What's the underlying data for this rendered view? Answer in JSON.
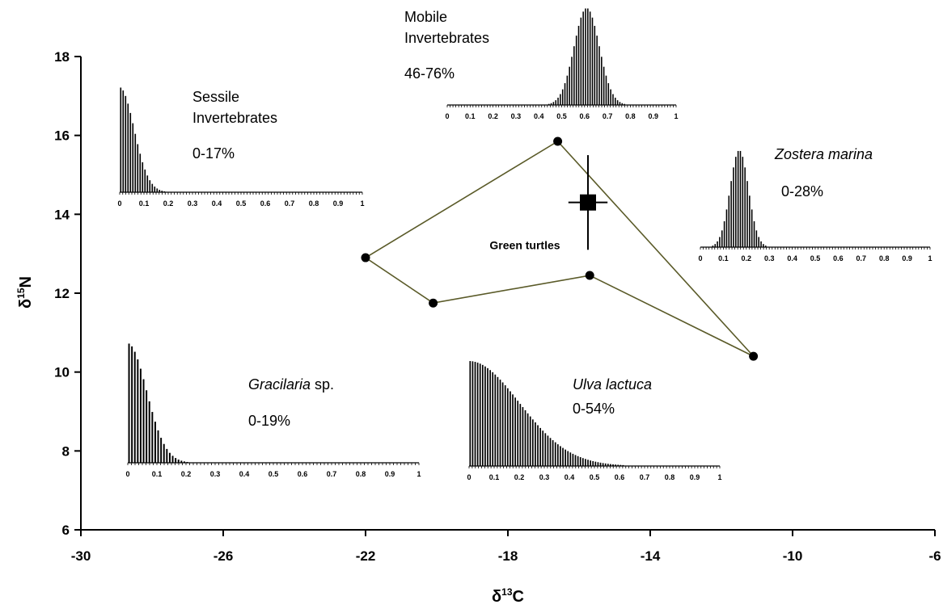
{
  "chart_data": {
    "type": "scatter",
    "xlabel_main": "δ",
    "xlabel_sup": "13",
    "xlabel_tail": "C",
    "ylabel_main": "δ",
    "ylabel_sup": "15",
    "ylabel_tail": "N",
    "xlim": [
      -30,
      -6
    ],
    "ylim": [
      6,
      18
    ],
    "xticks": [
      -30,
      -26,
      -22,
      -18,
      -14,
      -10,
      -6
    ],
    "yticks": [
      6,
      8,
      10,
      12,
      14,
      16,
      18
    ],
    "sources_polygon": [
      {
        "x": -22.0,
        "y": 12.9
      },
      {
        "x": -16.6,
        "y": 15.85
      },
      {
        "x": -11.1,
        "y": 10.4
      },
      {
        "x": -15.7,
        "y": 12.45
      },
      {
        "x": -20.1,
        "y": 11.75
      }
    ],
    "consumer": {
      "label": "Green turtles",
      "x": -15.75,
      "y": 14.3,
      "x_err": 0.55,
      "y_err": 1.2
    },
    "line_color": "#5a5a28",
    "insets": [
      {
        "id": "sessile",
        "label_lines": [
          "Sessile",
          "Invertebrates"
        ],
        "italic": false,
        "range": "0-17%",
        "ticks": [
          "0",
          "0.1",
          "0.2",
          "0.3",
          "0.4",
          "0.5",
          "0.6",
          "0.7",
          "0.8",
          "0.9",
          "1"
        ],
        "dist": {
          "shape": "halfnormal",
          "mode": 0.0,
          "sd": 0.06
        }
      },
      {
        "id": "mobile",
        "label_lines": [
          "Mobile",
          "Invertebrates"
        ],
        "italic": false,
        "range": "46-76%",
        "ticks": [
          "0",
          "0.1",
          "0.2",
          "0.3",
          "0.4",
          "0.5",
          "0.6",
          "0.7",
          "0.8",
          "0.9",
          "1"
        ],
        "dist": {
          "shape": "normal",
          "mode": 0.61,
          "sd": 0.055
        }
      },
      {
        "id": "zostera",
        "label_lines": [
          "Zostera marina"
        ],
        "italic": true,
        "range": "0-28%",
        "ticks": [
          "0",
          "0.1",
          "0.2",
          "0.3",
          "0.4",
          "0.5",
          "0.6",
          "0.7",
          "0.8",
          "0.9",
          "1"
        ],
        "dist": {
          "shape": "normal",
          "mode": 0.17,
          "sd": 0.04
        }
      },
      {
        "id": "gracilaria",
        "label_lines": [
          "Gracilaria"
        ],
        "label_suffix": " sp.",
        "italic": true,
        "range": "0-19%",
        "ticks": [
          "0",
          "0.1",
          "0.2",
          "0.3",
          "0.4",
          "0.5",
          "0.6",
          "0.7",
          "0.8",
          "0.9",
          "1"
        ],
        "dist": {
          "shape": "halfnormal",
          "mode": 0.0,
          "sd": 0.065
        }
      },
      {
        "id": "ulva",
        "label_lines": [
          "Ulva lactuca"
        ],
        "italic": true,
        "range": "0-54%",
        "ticks": [
          "0",
          "0.1",
          "0.2",
          "0.3",
          "0.4",
          "0.5",
          "0.6",
          "0.7",
          "0.8",
          "0.9",
          "1"
        ],
        "dist": {
          "shape": "halfnormal",
          "mode": 0.0,
          "sd": 0.2
        }
      }
    ]
  }
}
